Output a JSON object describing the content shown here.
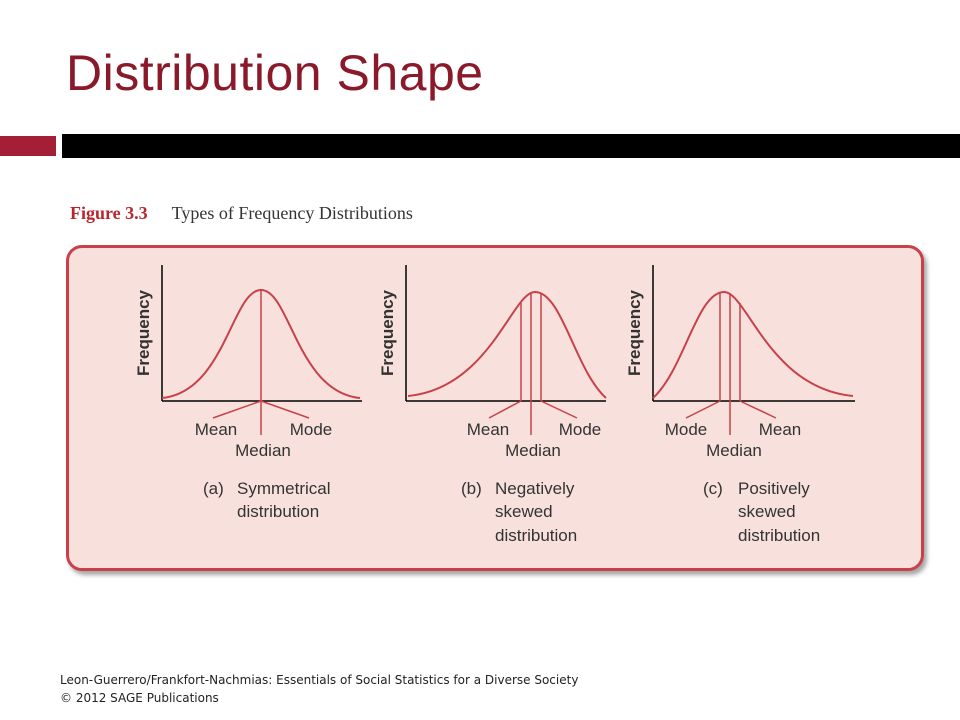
{
  "slide": {
    "title": "Distribution Shape"
  },
  "figure": {
    "label": "Figure 3.3",
    "caption": "Types of Frequency Distributions",
    "panels": [
      {
        "id": "symmetrical",
        "y_axis_label": "Frequency",
        "left_label": "Mean",
        "right_label": "Mode",
        "center_label": "Median",
        "letter": "(a)",
        "desc_lines": [
          "Symmetrical",
          "distribution"
        ]
      },
      {
        "id": "negative",
        "y_axis_label": "Frequency",
        "left_label": "Mean",
        "right_label": "Mode",
        "center_label": "Median",
        "letter": "(b)",
        "desc_lines": [
          "Negatively",
          "skewed",
          "distribution"
        ]
      },
      {
        "id": "positive",
        "y_axis_label": "Frequency",
        "left_label": "Mode",
        "right_label": "Mean",
        "center_label": "Median",
        "letter": "(c)",
        "desc_lines": [
          "Positively",
          "skewed",
          "distribution"
        ]
      }
    ]
  },
  "footer": {
    "line1": "Leon-Guerrero/Frankfort-Nachmias: Essentials of Social Statistics for a Diverse Society",
    "line2": "© 2012 SAGE Publications"
  },
  "colors": {
    "title": "#8a1a2a",
    "accent": "#a41f35",
    "curve": "#c8414a",
    "panel_fill": "#f8e1dc"
  }
}
